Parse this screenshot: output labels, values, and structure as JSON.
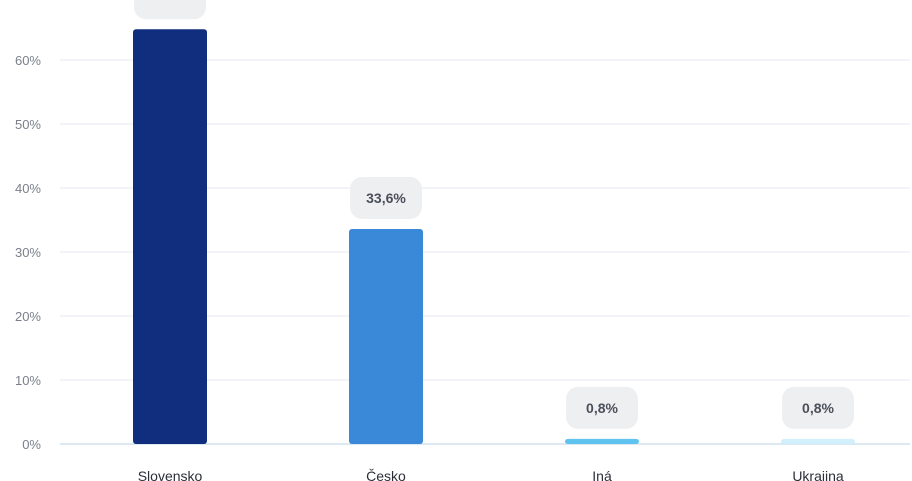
{
  "chart_data": {
    "type": "bar",
    "categories": [
      "Slovensko",
      "Česko",
      "Iná",
      "Ukrajina"
    ],
    "values": [
      64.8,
      33.6,
      0.8,
      0.8
    ],
    "data_labels": [
      "",
      "33,6%",
      "0,8%",
      "0,8%"
    ],
    "ylim": [
      0,
      65
    ],
    "yticks": [
      0,
      10,
      20,
      30,
      40,
      50,
      60
    ],
    "ytick_labels": [
      "0%",
      "10%",
      "20%",
      "30%",
      "40%",
      "50%",
      "60%"
    ],
    "grid": true,
    "bar_colors": [
      "#102d7e",
      "#3a88d8",
      "#5ec3ef",
      "#d2f0fc"
    ],
    "label_bg_color": "#eeeff1",
    "grid_color": "#e6e9ef",
    "baseline_color": "#b9d3e6"
  }
}
